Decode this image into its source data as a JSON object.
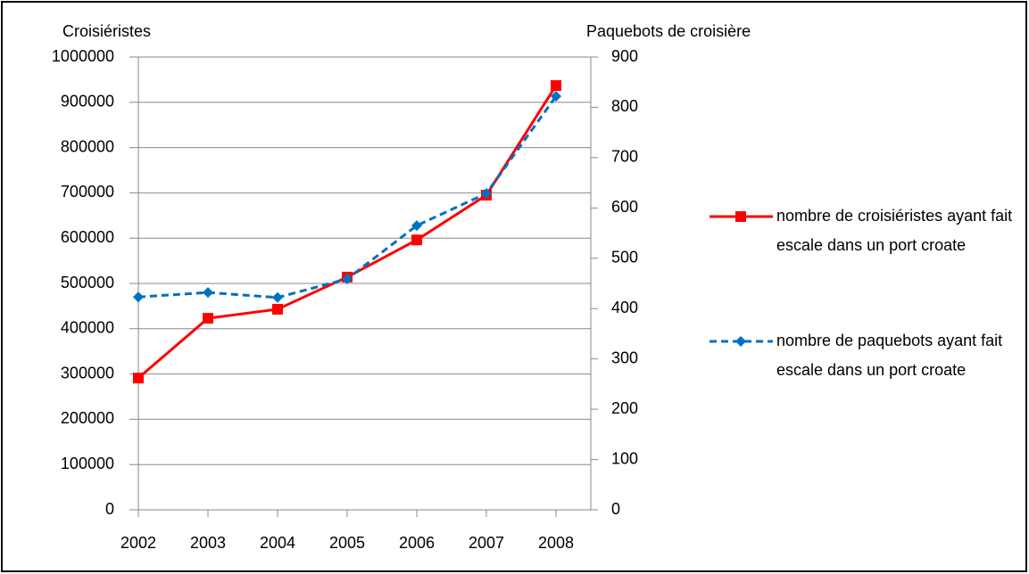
{
  "chart_data": {
    "type": "line",
    "y_label": "Croisiéristes",
    "y2_label": "Paquebots de croisière",
    "categories": [
      "2002",
      "2003",
      "2004",
      "2005",
      "2006",
      "2007",
      "2008"
    ],
    "series": [
      {
        "name": "nombre de croisiéristes ayant fait escale dans un port croate",
        "color": "#ff0000",
        "marker": "square",
        "dash": false,
        "values": [
          291000,
          423000,
          443000,
          514000,
          596000,
          695000,
          937000
        ]
      },
      {
        "name": "nombre de paquebots ayant fait escale dans un port croate",
        "color": "#0070c0",
        "marker": "diamond",
        "dash": true,
        "axis": "y2",
        "values": [
          423,
          432,
          422,
          459,
          565,
          629,
          822
        ]
      }
    ],
    "ylim": [
      0,
      1000000
    ],
    "yticks": [
      0,
      100000,
      200000,
      300000,
      400000,
      500000,
      600000,
      700000,
      800000,
      900000,
      1000000
    ],
    "y2lim": [
      0,
      900
    ],
    "y2ticks": [
      0,
      100,
      200,
      300,
      400,
      500,
      600,
      700,
      800,
      900
    ],
    "grid": true,
    "legend": "right"
  }
}
